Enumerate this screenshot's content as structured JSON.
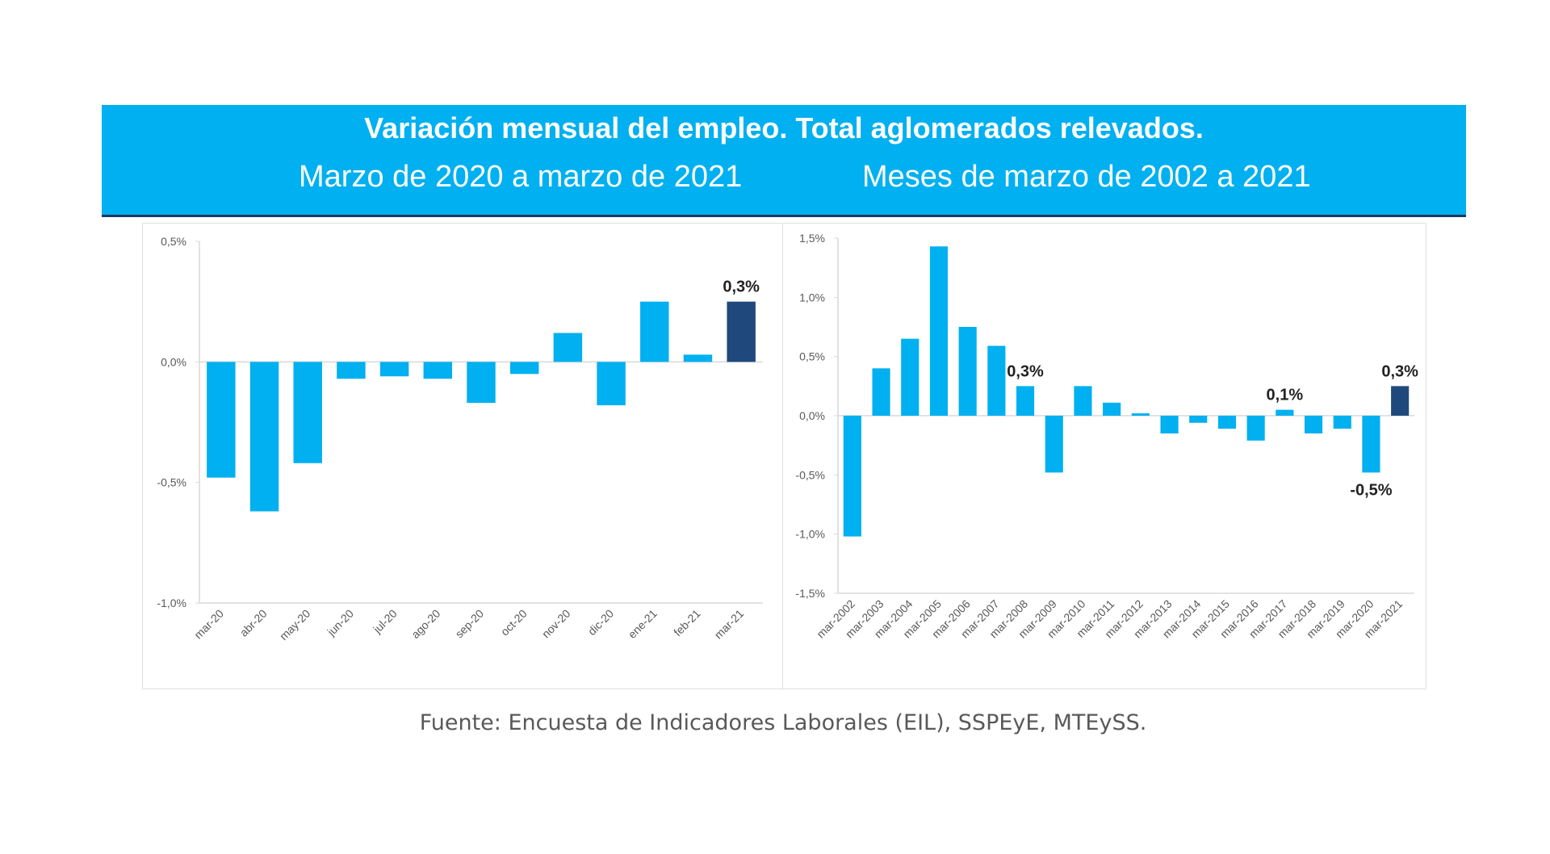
{
  "header": {
    "title": "Variación mensual del empleo. Total aglomerados relevados.",
    "subtitle_left": "Marzo de 2020 a marzo de 2021",
    "subtitle_right": "Meses de marzo de 2002 a 2021",
    "background_color": "#00b0f0",
    "border_color": "#1f3864"
  },
  "source": "Fuente: Encuesta de Indicadores Laborales (EIL), SSPEyE, MTEySS.",
  "colors": {
    "bar": "#00b0f0",
    "highlight": "#1f497d",
    "axis": "#d9d9d9"
  },
  "chart_data": [
    {
      "type": "bar",
      "title": "",
      "xlabel": "",
      "ylabel": "",
      "ylim": [
        -1.0,
        0.5
      ],
      "yticks": [
        0.5,
        0.0,
        -0.5,
        -1.0
      ],
      "ytick_labels": [
        "0,5%",
        "0,0%",
        "-0,5%",
        "-1,0%"
      ],
      "grid": false,
      "categories": [
        "mar-20",
        "abr-20",
        "may-20",
        "jun-20",
        "jul-20",
        "ago-20",
        "sep-20",
        "oct-20",
        "nov-20",
        "dic-20",
        "ene-21",
        "feb-21",
        "mar-21"
      ],
      "values": [
        -0.48,
        -0.62,
        -0.42,
        -0.07,
        -0.06,
        -0.07,
        -0.17,
        -0.05,
        0.12,
        -0.18,
        0.25,
        0.03,
        0.25
      ],
      "highlight_index": 12,
      "data_labels": [
        {
          "index": 12,
          "text": "0,3%"
        }
      ]
    },
    {
      "type": "bar",
      "title": "",
      "xlabel": "",
      "ylabel": "",
      "ylim": [
        -1.5,
        1.5
      ],
      "yticks": [
        1.5,
        1.0,
        0.5,
        0.0,
        -0.5,
        -1.0,
        -1.5
      ],
      "ytick_labels": [
        "1,5%",
        "1,0%",
        "0,5%",
        "0,0%",
        "-0,5%",
        "-1,0%",
        "-1,5%"
      ],
      "grid": false,
      "categories": [
        "mar-2002",
        "mar-2003",
        "mar-2004",
        "mar-2005",
        "mar-2006",
        "mar-2007",
        "mar-2008",
        "mar-2009",
        "mar-2010",
        "mar-2011",
        "mar-2012",
        "mar-2013",
        "mar-2014",
        "mar-2015",
        "mar-2016",
        "mar-2017",
        "mar-2018",
        "mar-2019",
        "mar-2020",
        "mar-2021"
      ],
      "values": [
        -1.02,
        0.4,
        0.65,
        1.43,
        0.75,
        0.59,
        0.25,
        -0.48,
        0.25,
        0.11,
        0.02,
        -0.15,
        -0.06,
        -0.11,
        -0.21,
        0.05,
        -0.15,
        -0.11,
        -0.48,
        0.25
      ],
      "highlight_index": 19,
      "data_labels": [
        {
          "index": 6,
          "text": "0,3%"
        },
        {
          "index": 15,
          "text": "0,1%"
        },
        {
          "index": 18,
          "text": "-0,5%"
        },
        {
          "index": 19,
          "text": "0,3%"
        }
      ]
    }
  ]
}
